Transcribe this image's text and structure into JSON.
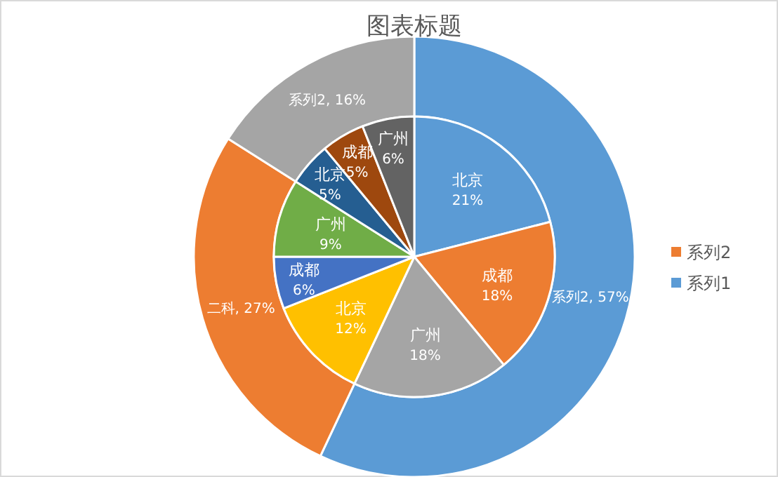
{
  "chart_data": [
    {
      "type": "donut",
      "title": "图表标题",
      "legend": "right",
      "categories": [
        null,
        null,
        null
      ],
      "value_labels": [
        "系列2, 57%",
        "二科, 27%",
        "系列2, 16%"
      ],
      "colors": [
        "#5b9bd5",
        "#ed7d31",
        "#a5a5a5"
      ],
      "series": [
        {
          "name": "系列1",
          "color": "#5b9bd5",
          "values": [
            57,
            27,
            16
          ]
        }
      ]
    },
    {
      "type": "pie",
      "categories": [
        "北京",
        "成都",
        "广州",
        "北京",
        "成都",
        "广州",
        "北京",
        "成都",
        "广州"
      ],
      "value_labels": [
        "21%",
        "18%",
        "18%",
        "12%",
        "6%",
        "9%",
        "5%",
        "5%",
        "6%"
      ],
      "colors": [
        "#5b9bd5",
        "#ed7d31",
        "#a5a5a5",
        "#ffc000",
        "#4472c4",
        "#70ad47",
        "#255e91",
        "#9e480e",
        "#636363"
      ],
      "series": [
        {
          "name": "系列2",
          "color": "#ed7d31",
          "values": [
            21,
            18,
            18,
            12,
            6,
            9,
            5,
            5,
            6
          ]
        }
      ]
    }
  ]
}
